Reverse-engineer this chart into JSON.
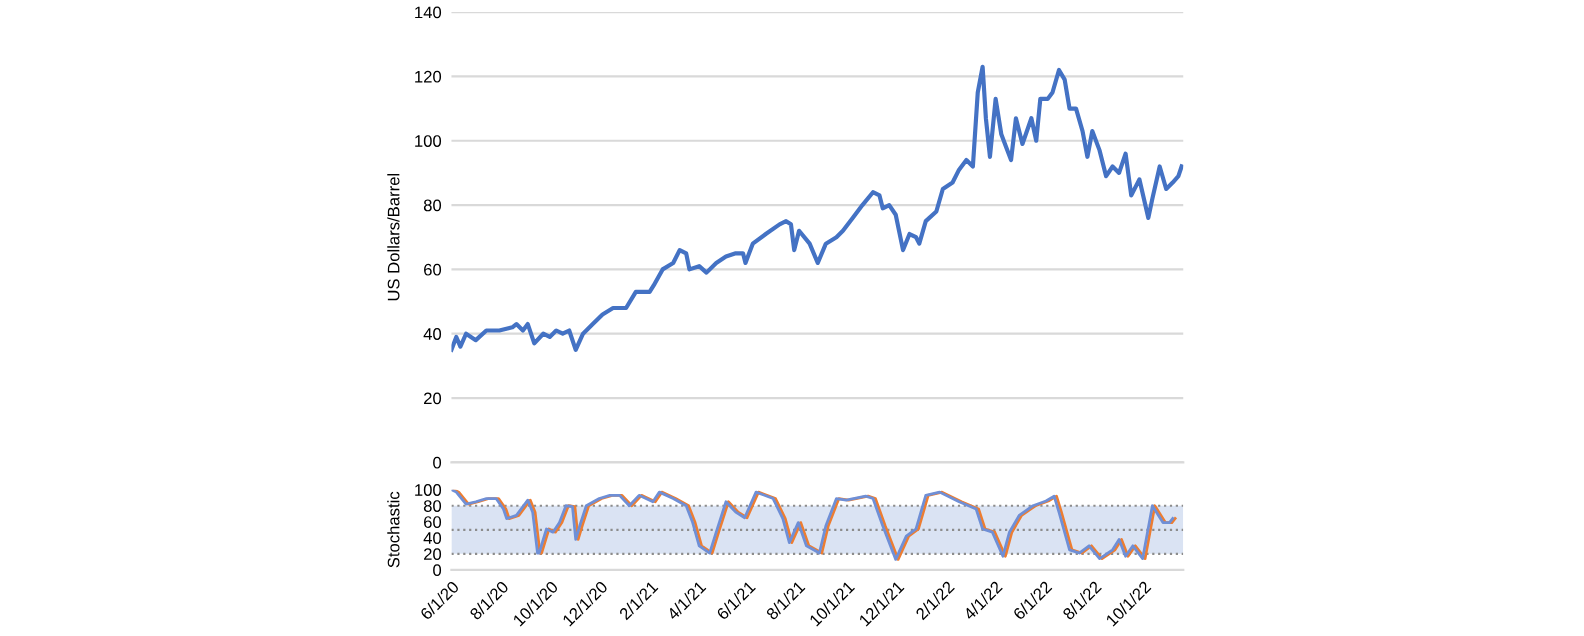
{
  "chart_data": [
    {
      "type": "line",
      "ylabel": "US Dollars/Barrel",
      "xlim": [
        "2020-06-01",
        "2022-11-19"
      ],
      "ylim": [
        0,
        140
      ],
      "yticks": [
        0,
        20,
        40,
        60,
        80,
        100,
        120,
        140
      ],
      "grid": "y",
      "tick_labels": "y",
      "series": [
        {
          "color": "#4472c4",
          "x": [
            "2020-06-01",
            "2020-06-07",
            "2020-06-12",
            "2020-06-19",
            "2020-07-01",
            "2020-07-14",
            "2020-07-30",
            "2020-08-15",
            "2020-08-20",
            "2020-08-28",
            "2020-09-03",
            "2020-09-11",
            "2020-09-22",
            "2020-09-30",
            "2020-10-08",
            "2020-10-16",
            "2020-10-24",
            "2020-11-01",
            "2020-11-10",
            "2020-11-22",
            "2020-12-04",
            "2020-12-17",
            "2021-01-02",
            "2021-01-14",
            "2021-01-31",
            "2021-02-05",
            "2021-02-16",
            "2021-03-01",
            "2021-03-09",
            "2021-03-17",
            "2021-03-21",
            "2021-04-02",
            "2021-04-11",
            "2021-04-23",
            "2021-05-05",
            "2021-05-17",
            "2021-05-26",
            "2021-05-29",
            "2021-06-07",
            "2021-06-23",
            "2021-07-10",
            "2021-07-18",
            "2021-07-24",
            "2021-07-28",
            "2021-08-03",
            "2021-08-16",
            "2021-08-26",
            "2021-09-05",
            "2021-09-18",
            "2021-09-26",
            "2021-10-08",
            "2021-10-20",
            "2021-11-02",
            "2021-11-10",
            "2021-11-14",
            "2021-11-22",
            "2021-11-30",
            "2021-12-09",
            "2021-12-17",
            "2021-12-25",
            "2021-12-29",
            "2022-01-06",
            "2022-01-19",
            "2022-01-27",
            "2022-02-08",
            "2022-02-16",
            "2022-02-25",
            "2022-03-05",
            "2022-03-11",
            "2022-03-17",
            "2022-03-21",
            "2022-03-26",
            "2022-04-02",
            "2022-04-09",
            "2022-04-15",
            "2022-04-21",
            "2022-04-27",
            "2022-05-05",
            "2022-05-16",
            "2022-05-22",
            "2022-05-27",
            "2022-06-05",
            "2022-06-11",
            "2022-06-19",
            "2022-06-26",
            "2022-07-02",
            "2022-07-10",
            "2022-07-18",
            "2022-07-24",
            "2022-07-30",
            "2022-08-08",
            "2022-08-16",
            "2022-08-24",
            "2022-09-01",
            "2022-09-09",
            "2022-09-16",
            "2022-09-26",
            "2022-10-07",
            "2022-10-12",
            "2022-10-21",
            "2022-10-29",
            "2022-11-06",
            "2022-11-13",
            "2022-11-17"
          ],
          "values": [
            35,
            39,
            36,
            40,
            38,
            41,
            41,
            42,
            43,
            41,
            43,
            37,
            40,
            39,
            41,
            40,
            41,
            35,
            40,
            43,
            46,
            48,
            48,
            53,
            53,
            55,
            60,
            62,
            66,
            65,
            60,
            61,
            59,
            62,
            64,
            65,
            65,
            62,
            68,
            71,
            74,
            75,
            74,
            66,
            72,
            68,
            62,
            68,
            70,
            72,
            76,
            80,
            84,
            83,
            79,
            80,
            77,
            66,
            71,
            70,
            68,
            75,
            78,
            85,
            87,
            91,
            94,
            92,
            115,
            123,
            107,
            95,
            113,
            102,
            98,
            94,
            107,
            99,
            107,
            100,
            113,
            113,
            115,
            122,
            119,
            110,
            110,
            103,
            95,
            103,
            97,
            89,
            92,
            90,
            96,
            83,
            88,
            76,
            82,
            92,
            85,
            87,
            89,
            92
          ]
        }
      ]
    },
    {
      "type": "line",
      "ylabel": "Stochastic",
      "xlim": [
        "2020-06-01",
        "2022-11-19"
      ],
      "ylim": [
        0,
        100
      ],
      "yticks": [
        0,
        20,
        40,
        60,
        80,
        100
      ],
      "xticks": [
        {
          "value": "2020-06-01",
          "label": "6/1/20"
        },
        {
          "value": "2020-08-01",
          "label": "8/1/20"
        },
        {
          "value": "2020-10-01",
          "label": "10/1/20"
        },
        {
          "value": "2020-12-01",
          "label": "12/1/20"
        },
        {
          "value": "2021-02-01",
          "label": "2/1/21"
        },
        {
          "value": "2021-04-01",
          "label": "4/1/21"
        },
        {
          "value": "2021-06-01",
          "label": "6/1/21"
        },
        {
          "value": "2021-08-01",
          "label": "8/1/21"
        },
        {
          "value": "2021-10-01",
          "label": "10/1/21"
        },
        {
          "value": "2021-12-01",
          "label": "12/1/21"
        },
        {
          "value": "2022-02-01",
          "label": "2/1/22"
        },
        {
          "value": "2022-04-01",
          "label": "4/1/22"
        },
        {
          "value": "2022-06-01",
          "label": "6/1/22"
        },
        {
          "value": "2022-08-01",
          "label": "8/1/22"
        },
        {
          "value": "2022-10-01",
          "label": "10/1/22"
        }
      ],
      "bands": [
        {
          "axis": "y",
          "from": 20,
          "to": 80,
          "color": "#dae3f3"
        }
      ],
      "ref_lines": [
        {
          "axis": "y",
          "value": 20,
          "color": "#8c8c8c",
          "line_style": "dotted"
        },
        {
          "axis": "y",
          "value": 50,
          "color": "#8c8c8c",
          "line_style": "dotted"
        },
        {
          "axis": "y",
          "value": 80,
          "color": "#8c8c8c",
          "line_style": "dotted"
        }
      ],
      "series": [
        {
          "color": "#ed7d31",
          "x": [
            "2020-06-04",
            "2020-06-10",
            "2020-06-22",
            "2020-07-04",
            "2020-07-17",
            "2020-07-29",
            "2020-08-07",
            "2020-08-11",
            "2020-08-23",
            "2020-09-06",
            "2020-09-12",
            "2020-09-18",
            "2020-09-20",
            "2020-09-29",
            "2020-10-07",
            "2020-10-15",
            "2020-10-23",
            "2020-10-31",
            "2020-11-04",
            "2020-11-09",
            "2020-11-17",
            "2020-12-03",
            "2020-12-16",
            "2020-12-28",
            "2021-01-09",
            "2021-01-21",
            "2021-02-07",
            "2021-02-15",
            "2021-03-04",
            "2021-03-20",
            "2021-03-28",
            "2021-04-05",
            "2021-04-18",
            "2021-04-26",
            "2021-05-08",
            "2021-05-20",
            "2021-05-31",
            "2021-06-14",
            "2021-07-05",
            "2021-07-17",
            "2021-07-25",
            "2021-08-05",
            "2021-08-15",
            "2021-08-31",
            "2021-09-08",
            "2021-09-21",
            "2021-10-03",
            "2021-10-27",
            "2021-11-05",
            "2021-11-17",
            "2021-12-03",
            "2021-12-16",
            "2021-12-28",
            "2022-01-09",
            "2022-01-26",
            "2022-02-19",
            "2022-03-12",
            "2022-03-20",
            "2022-04-01",
            "2022-04-14",
            "2022-04-22",
            "2022-05-04",
            "2022-05-21",
            "2022-06-06",
            "2022-06-16",
            "2022-06-22",
            "2022-07-05",
            "2022-07-17",
            "2022-07-29",
            "2022-08-11",
            "2022-08-27",
            "2022-09-04",
            "2022-09-12",
            "2022-09-21",
            "2022-10-03",
            "2022-10-15",
            "2022-10-28",
            "2022-11-05",
            "2022-11-09"
          ],
          "values": [
            100,
            97,
            82,
            85,
            89,
            89,
            76,
            64,
            68,
            87,
            72,
            21,
            21,
            51,
            47,
            59,
            80,
            79,
            38,
            55,
            80,
            89,
            93,
            93,
            80,
            93,
            85,
            97,
            89,
            80,
            59,
            30,
            21,
            47,
            85,
            72,
            65,
            97,
            89,
            64,
            34,
            59,
            30,
            21,
            55,
            89,
            87,
            92,
            89,
            55,
            13,
            42,
            51,
            93,
            97,
            85,
            76,
            51,
            47,
            17,
            47,
            68,
            80,
            86,
            92,
            72,
            25,
            21,
            30,
            14,
            25,
            38,
            17,
            30,
            14,
            80,
            59,
            59,
            64
          ]
        },
        {
          "color": "#6f8fd6",
          "x": [
            "2020-06-01",
            "2020-06-07",
            "2020-06-19",
            "2020-07-01",
            "2020-07-14",
            "2020-07-26",
            "2020-08-04",
            "2020-08-08",
            "2020-08-20",
            "2020-09-03",
            "2020-09-09",
            "2020-09-15",
            "2020-09-17",
            "2020-09-26",
            "2020-10-04",
            "2020-10-12",
            "2020-10-20",
            "2020-10-28",
            "2020-11-01",
            "2020-11-06",
            "2020-11-14",
            "2020-11-30",
            "2020-12-13",
            "2020-12-25",
            "2021-01-06",
            "2021-01-18",
            "2021-02-04",
            "2021-02-12",
            "2021-03-01",
            "2021-03-17",
            "2021-03-25",
            "2021-04-02",
            "2021-04-15",
            "2021-04-23",
            "2021-05-05",
            "2021-05-17",
            "2021-05-28",
            "2021-06-11",
            "2021-07-02",
            "2021-07-14",
            "2021-07-22",
            "2021-08-02",
            "2021-08-12",
            "2021-08-28",
            "2021-09-05",
            "2021-09-18",
            "2021-09-30",
            "2021-10-24",
            "2021-11-02",
            "2021-11-14",
            "2021-11-30",
            "2021-12-13",
            "2021-12-25",
            "2022-01-06",
            "2022-01-23",
            "2022-02-16",
            "2022-03-09",
            "2022-03-17",
            "2022-03-29",
            "2022-04-11",
            "2022-04-19",
            "2022-05-01",
            "2022-05-18",
            "2022-06-03",
            "2022-06-13",
            "2022-06-19",
            "2022-07-02",
            "2022-07-14",
            "2022-07-26",
            "2022-08-08",
            "2022-08-24",
            "2022-09-01",
            "2022-09-09",
            "2022-09-18",
            "2022-09-30",
            "2022-10-12",
            "2022-10-25",
            "2022-11-02",
            "2022-11-06"
          ],
          "values": [
            100,
            97,
            82,
            85,
            89,
            89,
            76,
            64,
            68,
            87,
            72,
            21,
            21,
            51,
            47,
            59,
            80,
            79,
            38,
            55,
            80,
            89,
            93,
            93,
            80,
            93,
            85,
            97,
            89,
            80,
            59,
            30,
            21,
            47,
            85,
            72,
            65,
            97,
            89,
            64,
            34,
            59,
            30,
            21,
            55,
            89,
            87,
            92,
            89,
            55,
            13,
            42,
            51,
            93,
            97,
            85,
            76,
            51,
            47,
            17,
            47,
            68,
            80,
            86,
            92,
            72,
            25,
            21,
            30,
            14,
            25,
            38,
            17,
            30,
            14,
            80,
            59,
            59,
            64
          ]
        }
      ]
    }
  ]
}
